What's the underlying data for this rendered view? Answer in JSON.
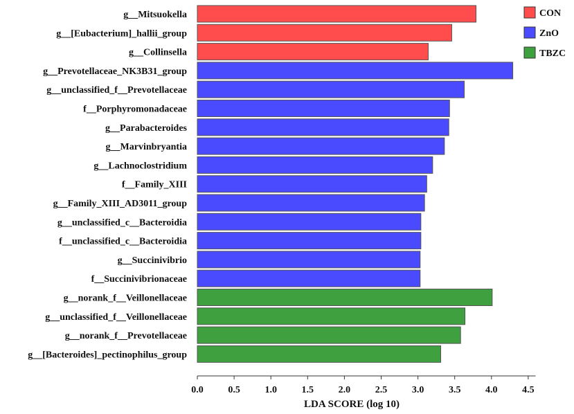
{
  "chart_data": {
    "type": "bar",
    "orientation": "horizontal",
    "xlabel": "LDA SCORE (log 10)",
    "xlim": [
      0,
      4.5
    ],
    "xticks": [
      "0.0",
      "0.5",
      "1.0",
      "1.5",
      "2.0",
      "2.5",
      "3.0",
      "3.5",
      "4.0",
      "4.5"
    ],
    "legend_position": "top-right",
    "groups": [
      {
        "name": "CON",
        "color": "#ff4c4c"
      },
      {
        "name": "ZnO",
        "color": "#4a4aff"
      },
      {
        "name": "TBZC",
        "color": "#3fa040"
      }
    ],
    "categories": [
      "g__Mitsuokella",
      "g__[Eubacterium]_hallii_group",
      "g__Collinsella",
      "g__Prevotellaceae_NK3B31_group",
      "g__unclassified_f__Prevotellaceae",
      "f__Porphyromonadaceae",
      "g__Parabacteroides",
      "g__Marvinbryantia",
      "g__Lachnoclostridium",
      "f__Family_XIII",
      "g__Family_XIII_AD3011_group",
      "g__unclassified_c__Bacteroidia",
      "f__unclassified_c__Bacteroidia",
      "g__Succinivibrio",
      "f__Succinivibrionaceae",
      "g__norank_f__Veillonellaceae",
      "g__unclassified_f__Veillonellaceae",
      "g__norank_f__Prevotellaceae",
      "g__[Bacteroides]_pectinophilus_group"
    ],
    "values": [
      3.79,
      3.46,
      3.14,
      4.29,
      3.63,
      3.43,
      3.42,
      3.36,
      3.2,
      3.12,
      3.09,
      3.04,
      3.04,
      3.03,
      3.03,
      4.01,
      3.64,
      3.58,
      3.31
    ],
    "bar_groups": [
      "CON",
      "CON",
      "CON",
      "ZnO",
      "ZnO",
      "ZnO",
      "ZnO",
      "ZnO",
      "ZnO",
      "ZnO",
      "ZnO",
      "ZnO",
      "ZnO",
      "ZnO",
      "ZnO",
      "TBZC",
      "TBZC",
      "TBZC",
      "TBZC"
    ]
  }
}
